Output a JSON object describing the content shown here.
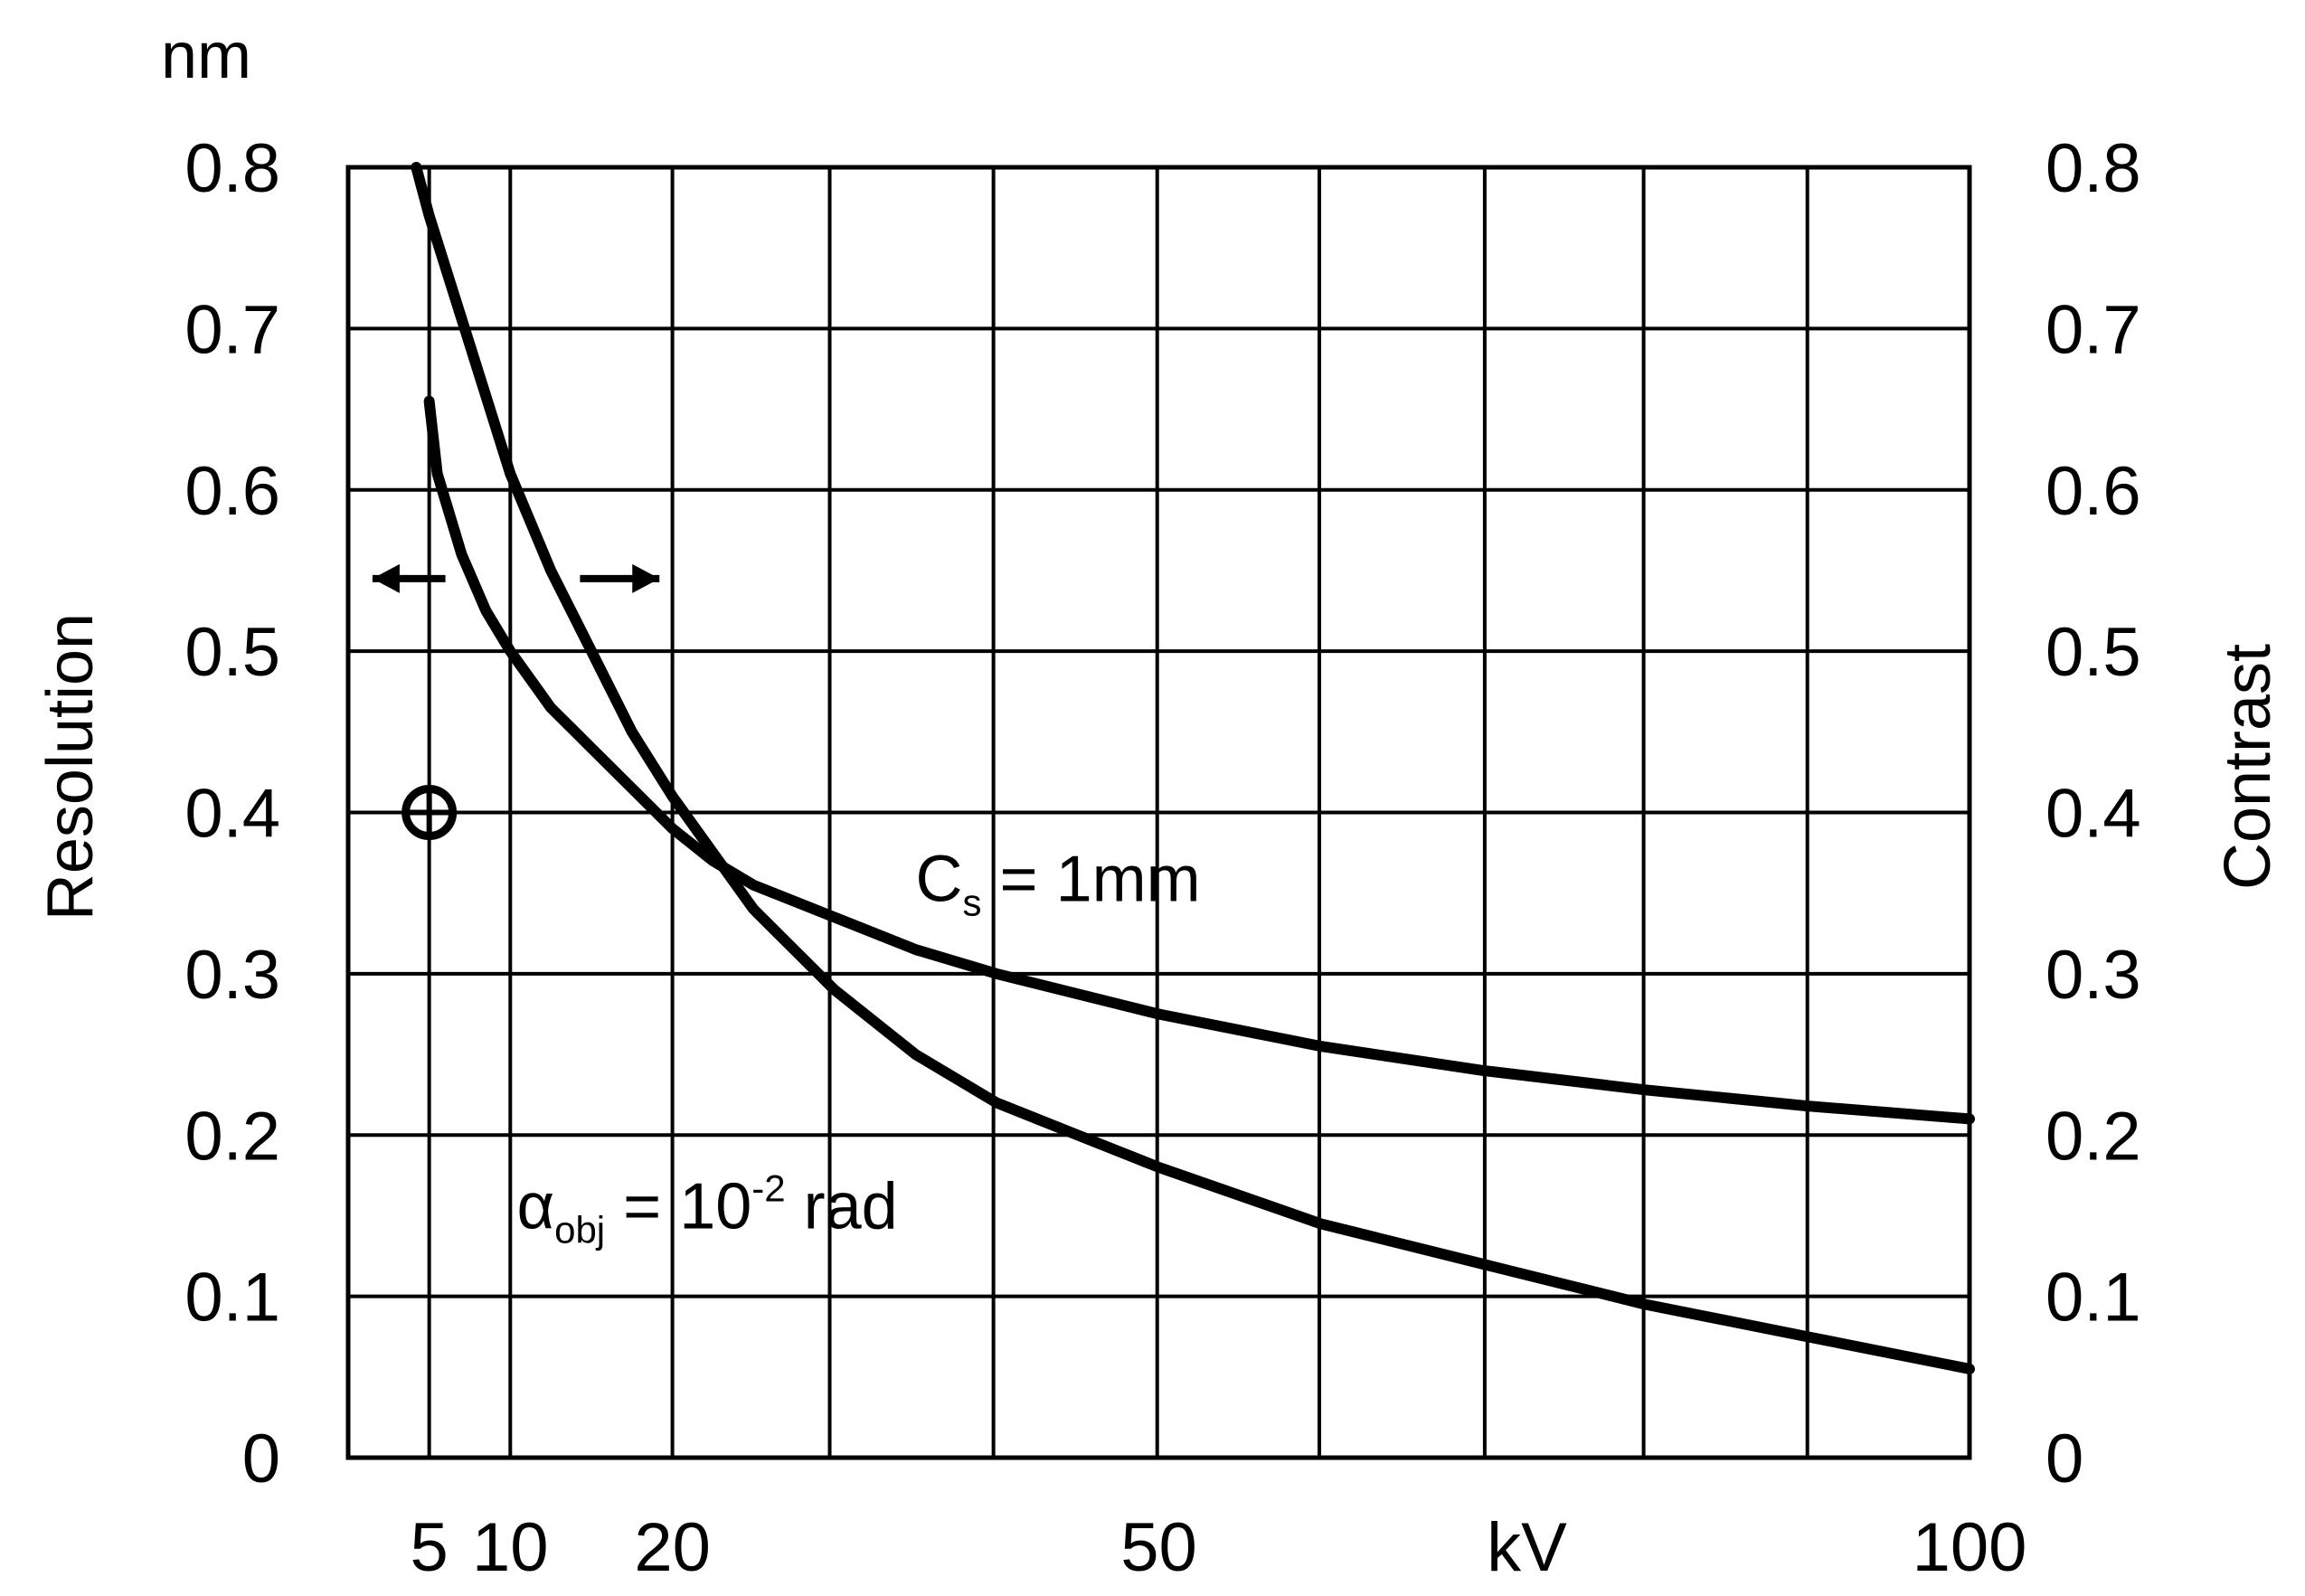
{
  "chart_data": {
    "type": "line",
    "y_unit": "nm",
    "xlabel": "kV",
    "ylabel_left": "Resolution",
    "ylabel_right": "Contrast",
    "xlim": [
      0,
      100
    ],
    "ylim": [
      0,
      0.8
    ],
    "x_ticks": [
      {
        "value": 5,
        "label": "5"
      },
      {
        "value": 10,
        "label": "10"
      },
      {
        "value": 20,
        "label": "20"
      },
      {
        "value": 50,
        "label": "50"
      },
      {
        "value": 100,
        "label": "100"
      }
    ],
    "x_axis_unit_label": {
      "value": 72.7,
      "label": "kV"
    },
    "x_gridlines": [
      5,
      10,
      20,
      29.7,
      39.8,
      49.9,
      59.9,
      70.1,
      79.9,
      90,
      100
    ],
    "y_ticks": [
      {
        "value": 0,
        "label": "0"
      },
      {
        "value": 0.1,
        "label": "0.1"
      },
      {
        "value": 0.2,
        "label": "0.2"
      },
      {
        "value": 0.3,
        "label": "0.3"
      },
      {
        "value": 0.4,
        "label": "0.4"
      },
      {
        "value": 0.5,
        "label": "0.5"
      },
      {
        "value": 0.6,
        "label": "0.6"
      },
      {
        "value": 0.7,
        "label": "0.7"
      },
      {
        "value": 0.8,
        "label": "0.8"
      }
    ],
    "grid": true,
    "series": [
      {
        "name": "",
        "x": [
          4.2,
          5,
          7.5,
          10,
          12.5,
          15,
          17.5,
          20,
          25,
          30,
          35,
          40,
          45,
          50,
          60,
          70,
          80,
          90,
          100
        ],
        "y": [
          0.8,
          0.77,
          0.69,
          0.61,
          0.55,
          0.5,
          0.45,
          0.41,
          0.34,
          0.29,
          0.25,
          0.22,
          0.2,
          0.18,
          0.145,
          0.12,
          0.095,
          0.075,
          0.055
        ]
      },
      {
        "name": "",
        "x": [
          5,
          5.5,
          7,
          8.5,
          10,
          12.5,
          15,
          17.5,
          20,
          22.5,
          25,
          30,
          35,
          40,
          50,
          60,
          70,
          80,
          90,
          100
        ],
        "y": [
          0.655,
          0.61,
          0.56,
          0.525,
          0.5,
          0.465,
          0.44,
          0.415,
          0.39,
          0.37,
          0.355,
          0.335,
          0.315,
          0.3,
          0.275,
          0.255,
          0.24,
          0.228,
          0.218,
          0.21
        ]
      }
    ],
    "annotations": {
      "cs": {
        "main": "C",
        "sub": "s",
        "rest": " = 1mm",
        "x": 35,
        "y": 0.345
      },
      "alpha": {
        "main": "α",
        "sub": "obj",
        "rest": " = 10",
        "sup": "-2",
        "tail": " rad",
        "x": 10.4,
        "y": 0.142
      },
      "marker": {
        "x": 5,
        "y": 0.4
      },
      "arrows": [
        {
          "from_x": 6,
          "to_x": 1.5,
          "y": 0.545,
          "direction": "left"
        },
        {
          "from_x": 14.3,
          "to_x": 19.2,
          "y": 0.545,
          "direction": "right"
        }
      ]
    }
  }
}
